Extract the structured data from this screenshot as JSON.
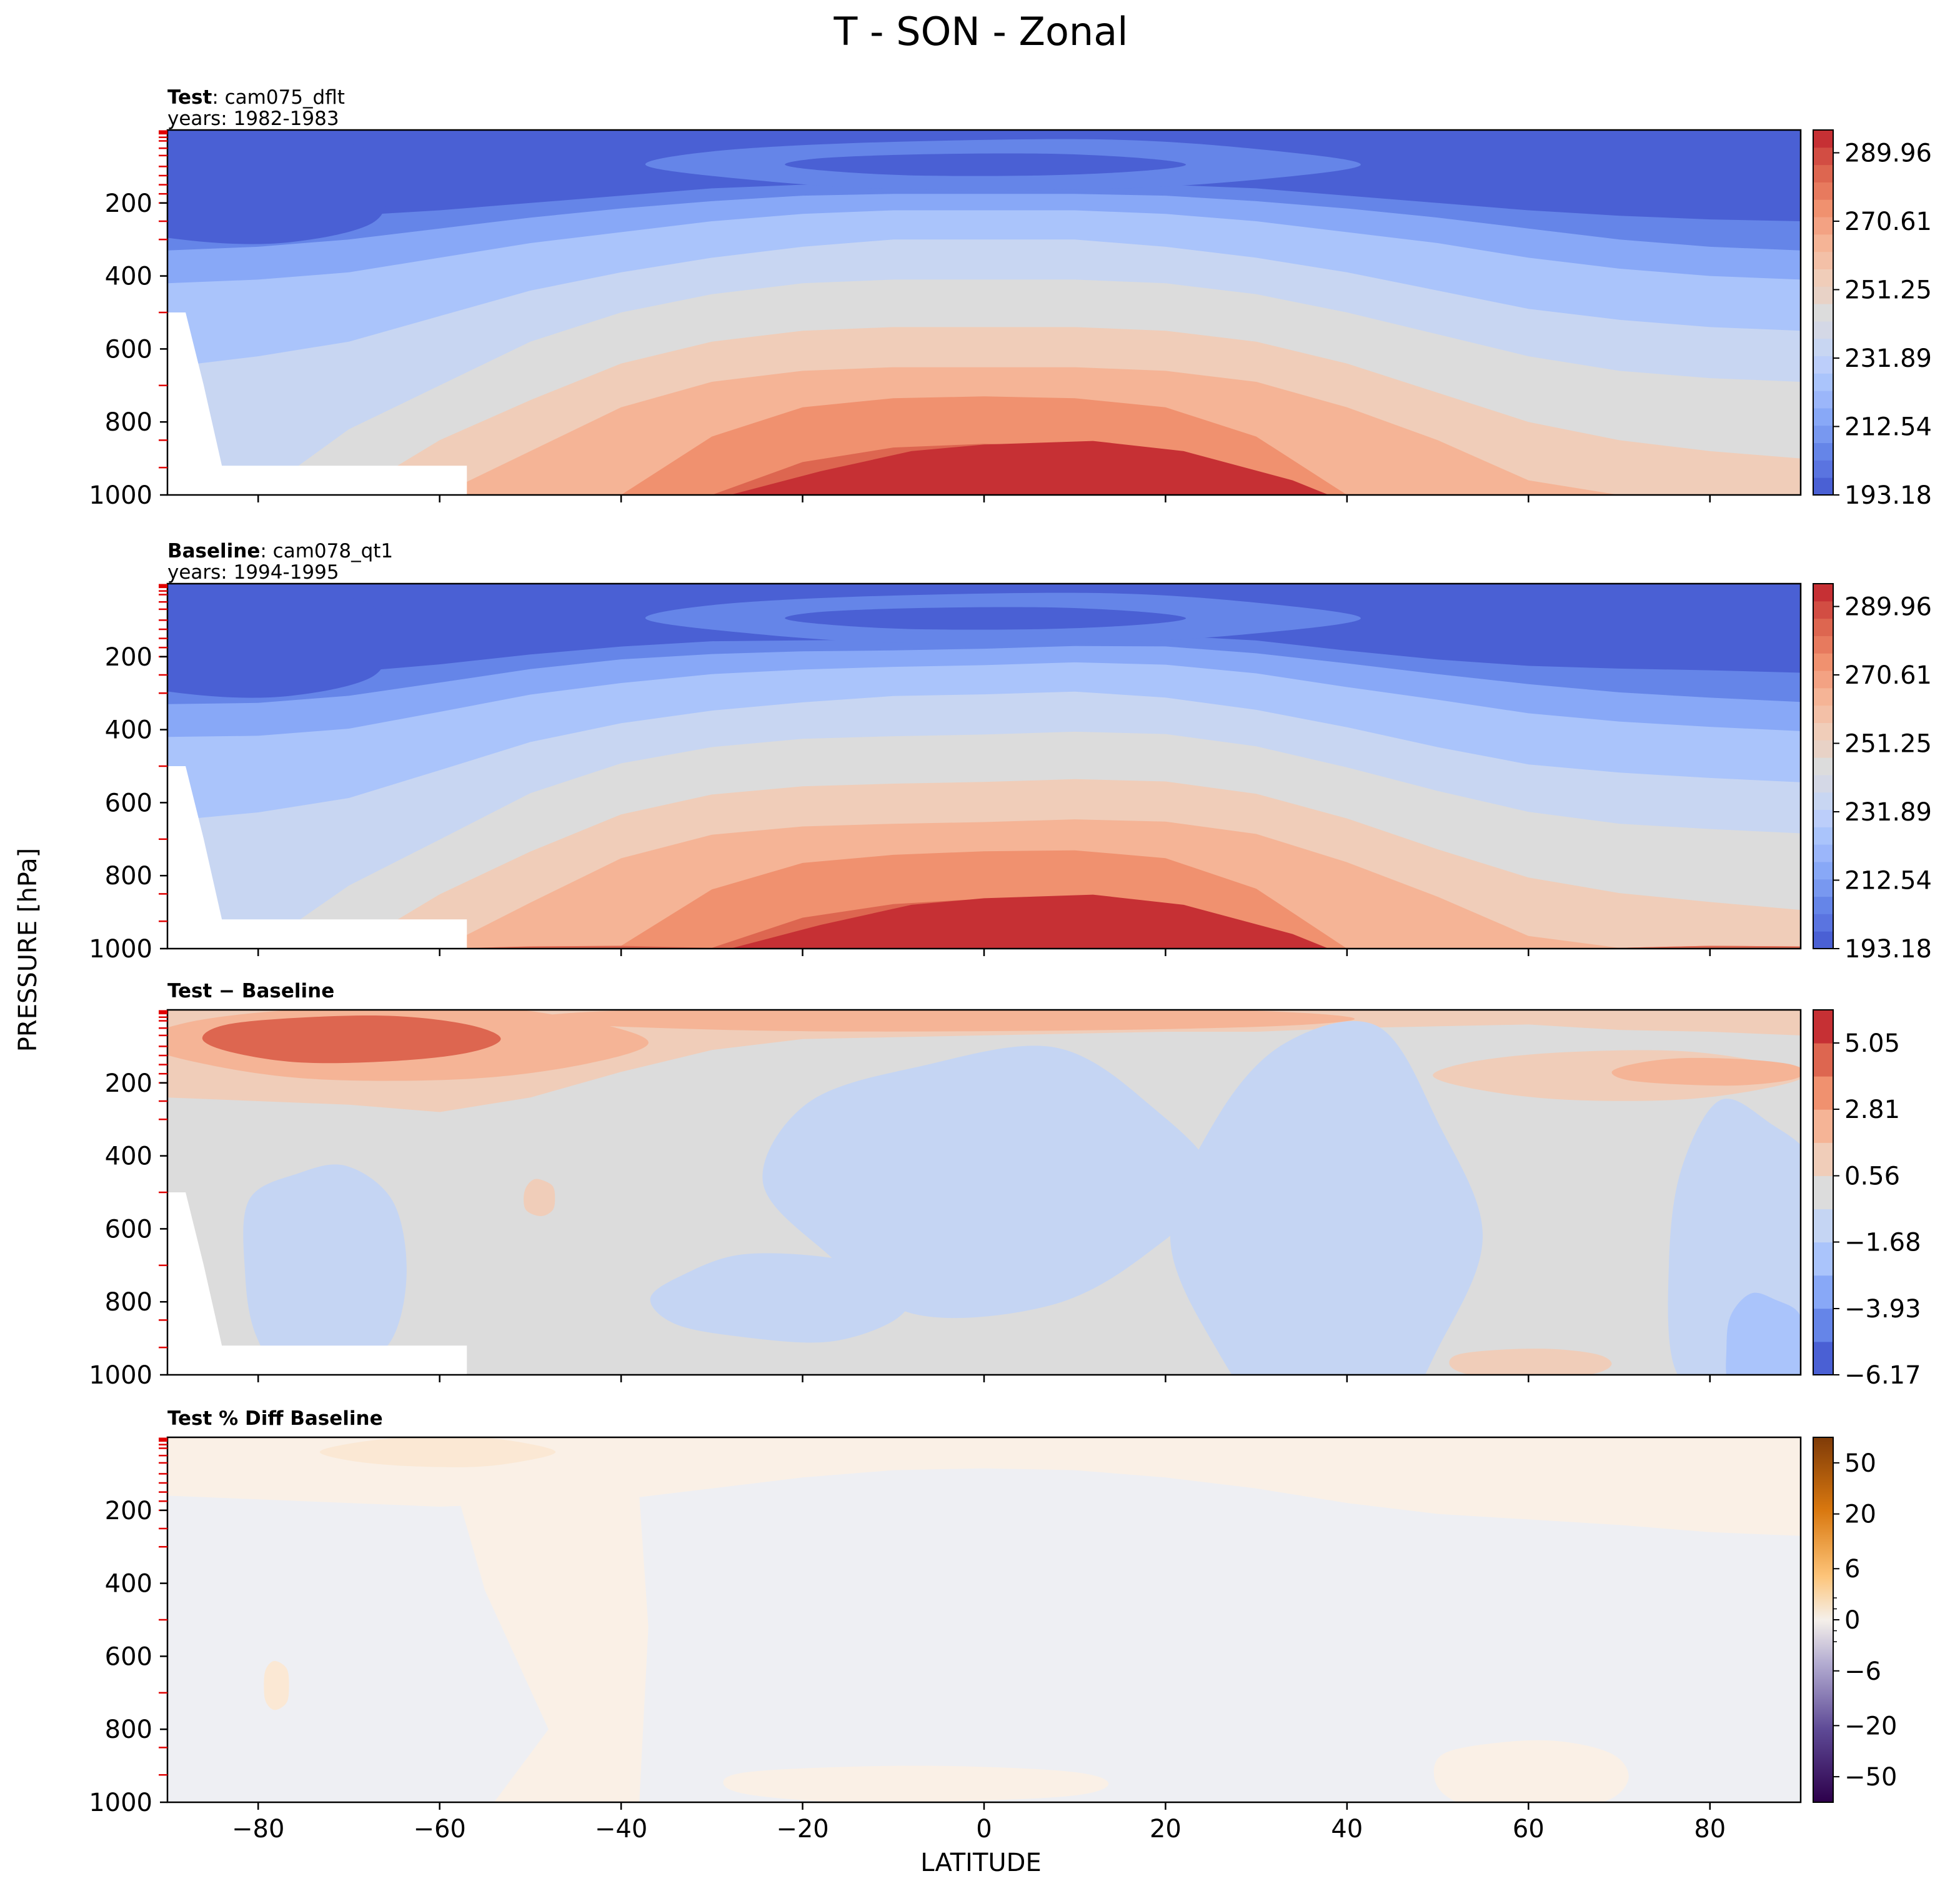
{
  "figure": {
    "title": "T - SON - Zonal",
    "xlabel": "LATITUDE",
    "ylabel": "PRESSURE [hPa]"
  },
  "x_ticks": [
    "−80",
    "−60",
    "−40",
    "−20",
    "0",
    "20",
    "40",
    "60",
    "80"
  ],
  "y_ticks": [
    "200",
    "400",
    "600",
    "800",
    "1000"
  ],
  "panels": [
    {
      "title_bold": "Test",
      "title_rest": ": cam075_dflt",
      "years": "years: 1982-1983",
      "colorbar_ticks": [
        "289.96",
        "270.61",
        "251.25",
        "231.89",
        "212.54",
        "193.18"
      ]
    },
    {
      "title_bold": "Baseline",
      "title_rest": ": cam078_qt1",
      "years": "years: 1994-1995",
      "colorbar_ticks": [
        "289.96",
        "270.61",
        "251.25",
        "231.89",
        "212.54",
        "193.18"
      ]
    },
    {
      "title_bold": "Test − Baseline",
      "title_rest": "",
      "years": "",
      "colorbar_ticks": [
        "5.05",
        "2.81",
        "0.56",
        "−1.68",
        "−3.93",
        "−6.17"
      ]
    },
    {
      "title_bold": "Test % Diff Baseline",
      "title_rest": "",
      "years": "",
      "colorbar_ticks": [
        "50",
        "20",
        "6",
        "0",
        "−6",
        "−20",
        "−50"
      ]
    }
  ],
  "chart_data": [
    {
      "type": "heatmap",
      "plot": "filled-contour",
      "field": "T",
      "x": "latitude",
      "xlim": [
        -90,
        90
      ],
      "y": "pressure",
      "ylim": [
        1000,
        0
      ],
      "levels": [
        193.18,
        199.63,
        206.08,
        212.54,
        218.99,
        225.44,
        231.89,
        238.34,
        244.8,
        251.25,
        257.7,
        264.15,
        270.61,
        277.06,
        283.51,
        289.96,
        296.41
      ],
      "colormap": "coolwarm",
      "colors": [
        "#4a60d4",
        "#6585e8",
        "#88a8f7",
        "#aac4fb",
        "#c8d6f2",
        "#dcdcdc",
        "#f0cdb9",
        "#f5b496",
        "#f0916f",
        "#dd6650",
        "#c63034"
      ],
      "summary": "Coldest (~193–200 K) near 100 hPa over the tropics and over the south polar stratosphere; warmest (~290 K) at the surface between about 20S and 25N; blank region below ~500 hPa south of about 55S (Antarctic surface)."
    },
    {
      "type": "heatmap",
      "plot": "filled-contour",
      "field": "T",
      "x": "latitude",
      "xlim": [
        -90,
        90
      ],
      "y": "pressure",
      "ylim": [
        1000,
        0
      ],
      "levels": [
        193.18,
        199.63,
        206.08,
        212.54,
        218.99,
        225.44,
        231.89,
        238.34,
        244.8,
        251.25,
        257.7,
        264.15,
        270.61,
        277.06,
        283.51,
        289.96,
        296.41
      ],
      "colormap": "coolwarm",
      "colors": [
        "#4a60d4",
        "#6585e8",
        "#88a8f7",
        "#aac4fb",
        "#c8d6f2",
        "#dcdcdc",
        "#f0cdb9",
        "#f5b496",
        "#f0916f",
        "#dd6650",
        "#c63034"
      ],
      "summary": "Structure nearly identical to the Test panel."
    },
    {
      "type": "heatmap",
      "plot": "filled-contour",
      "field": "T difference",
      "x": "latitude",
      "xlim": [
        -90,
        90
      ],
      "y": "pressure",
      "ylim": [
        1000,
        0
      ],
      "levels": [
        -6.17,
        -5.05,
        -3.93,
        -2.81,
        -1.68,
        -0.56,
        0.56,
        1.68,
        2.81,
        3.93,
        5.05,
        6.17
      ],
      "colormap": "coolwarm",
      "summary": "Positive differences up to ~4–5 in the upper levels (above ~250 hPa) especially at high southern latitudes; weak negative differences (~-1 to -2) over broad regions of the mid/lower troposphere; near-zero elsewhere."
    },
    {
      "type": "heatmap",
      "plot": "filled-contour",
      "field": "T percent difference",
      "x": "latitude",
      "xlim": [
        -90,
        90
      ],
      "y": "pressure",
      "ylim": [
        1000,
        0
      ],
      "colormap": "PuOr_r",
      "summary": "Values near zero everywhere: slight positive (light orange) in the upper levels and a tongue from about 50S to 30S, slight negative (light grey) elsewhere."
    }
  ]
}
